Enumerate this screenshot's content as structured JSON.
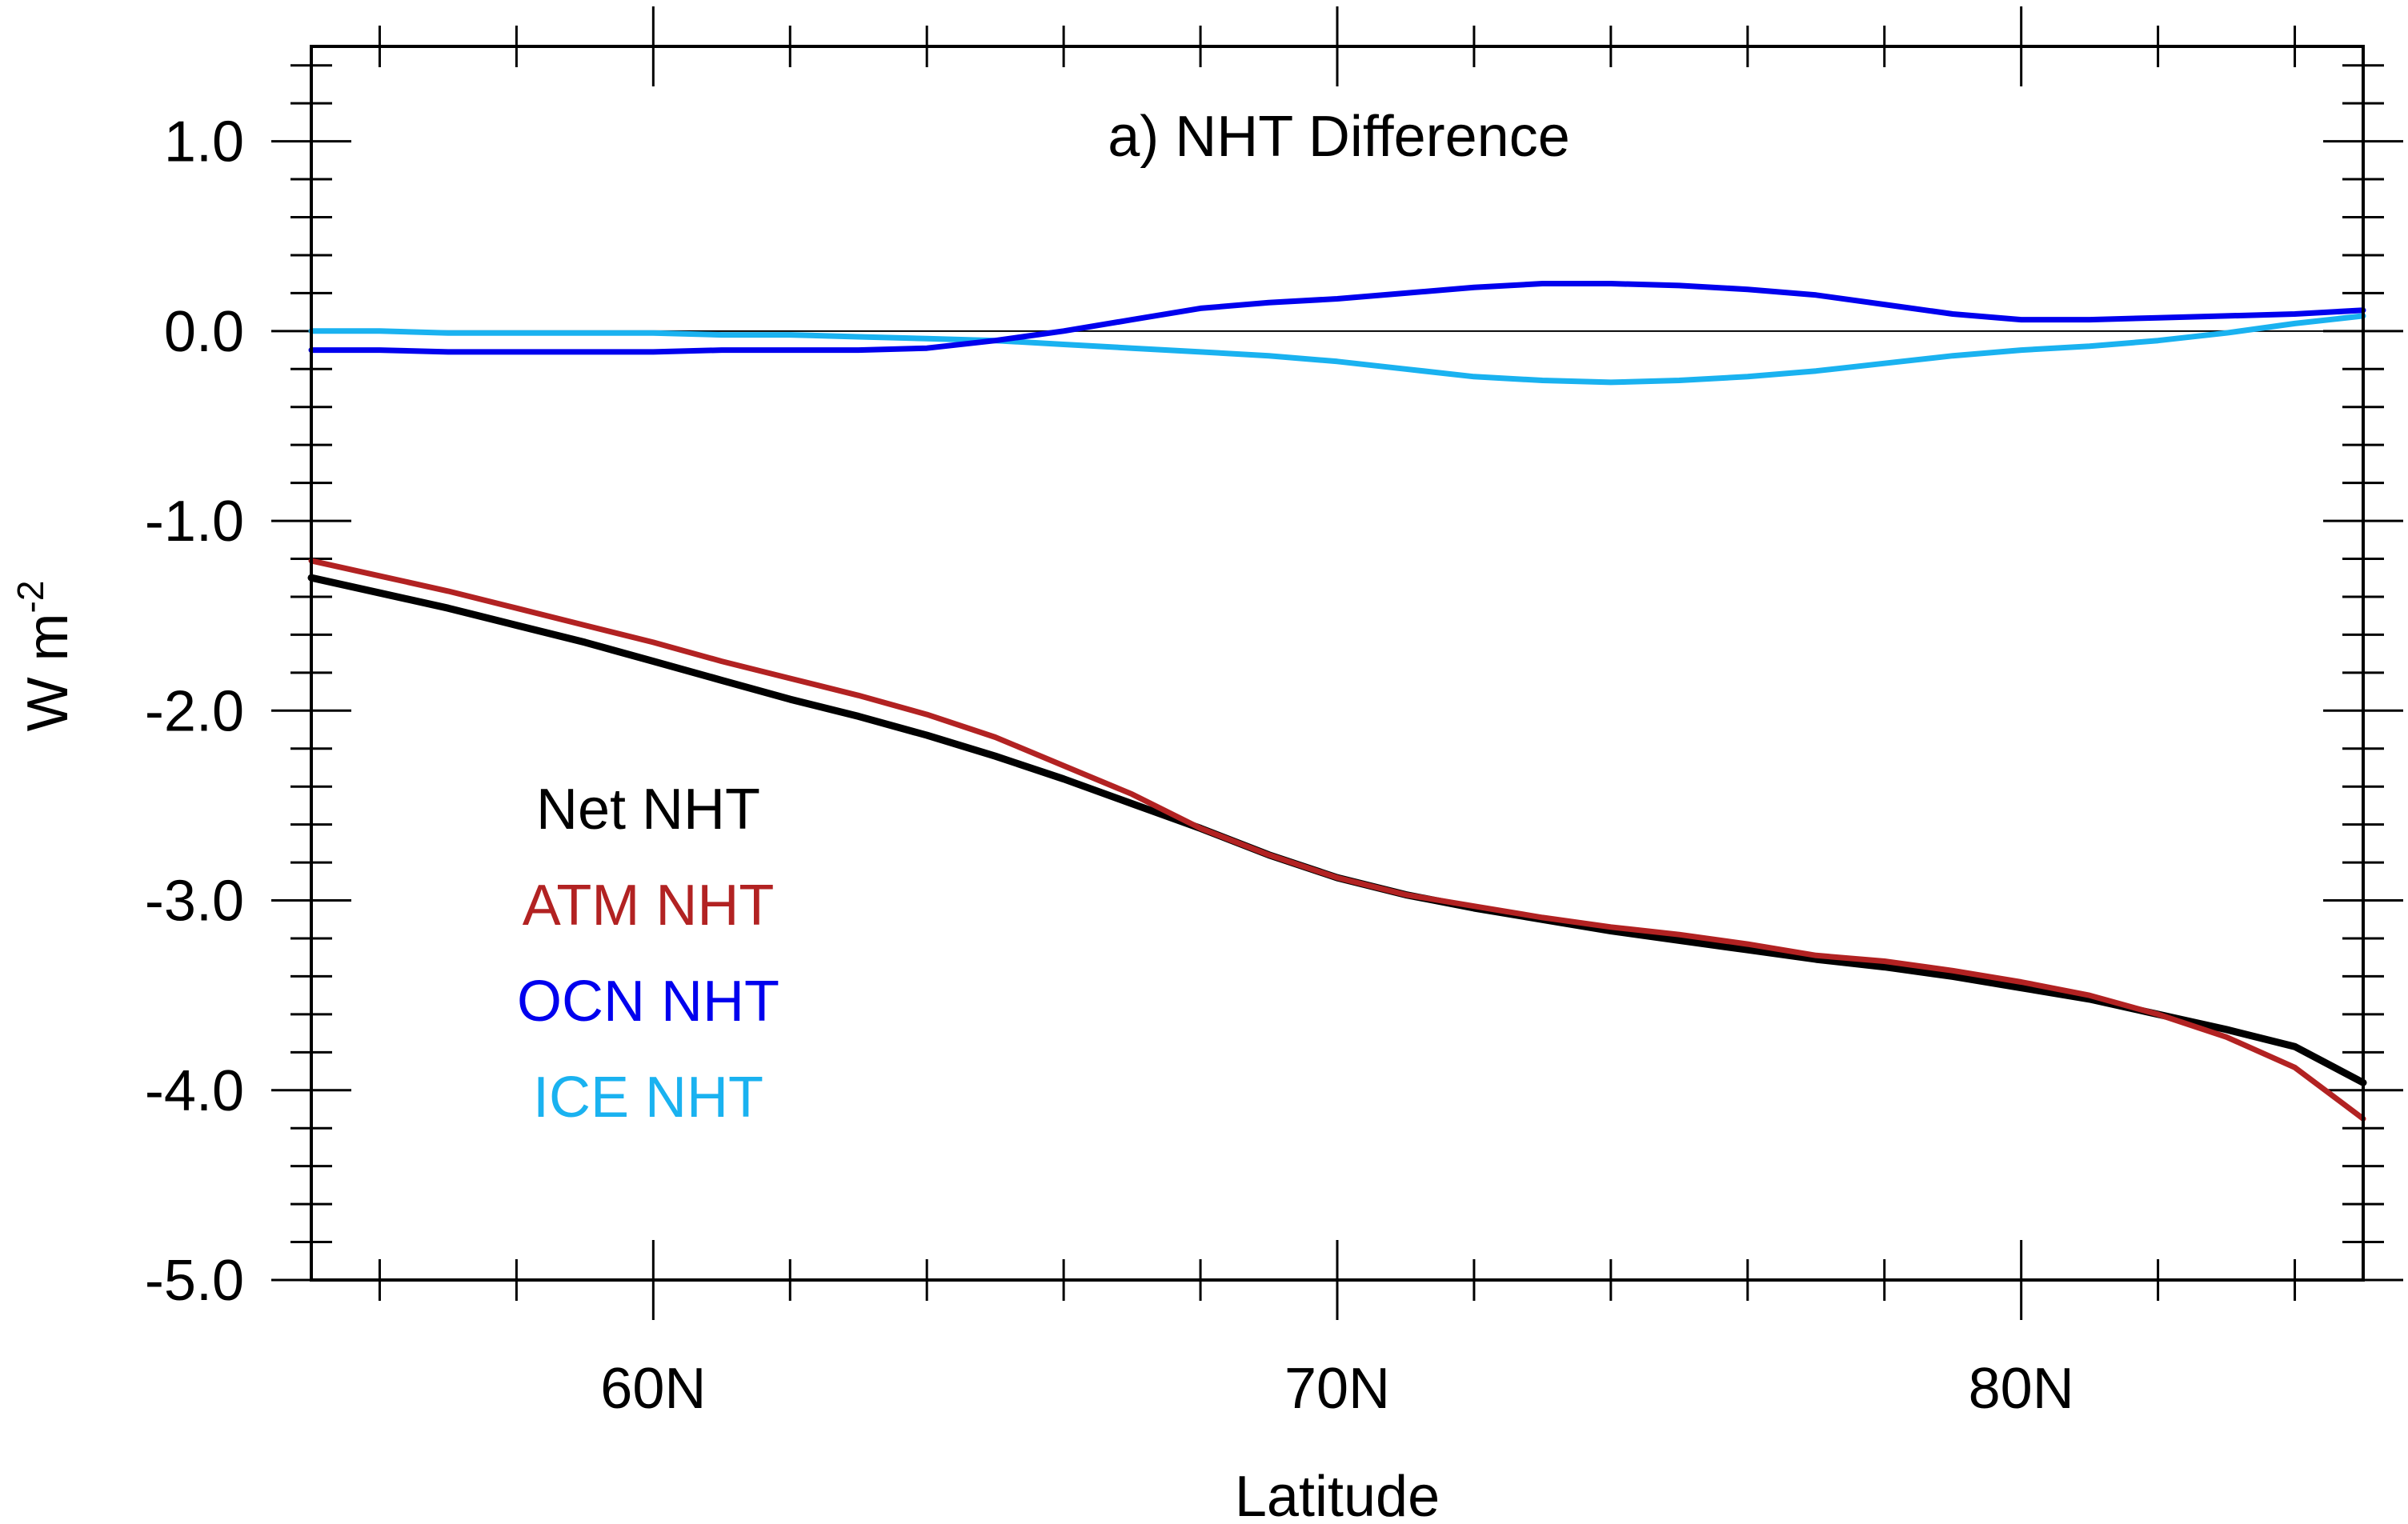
{
  "chart_data": {
    "type": "line",
    "title": "a) NHT Difference",
    "xlabel": "Latitude",
    "ylabel": "W m",
    "ylabel_exponent": "-2",
    "xlim": [
      55,
      85
    ],
    "ylim": [
      -5.0,
      1.5
    ],
    "x_ticks": [
      60,
      70,
      80
    ],
    "x_tick_labels": [
      "60N",
      "70N",
      "80N"
    ],
    "y_ticks": [
      1.0,
      0.0,
      -1.0,
      -2.0,
      -3.0,
      -4.0,
      -5.0
    ],
    "y_tick_labels": [
      "1.0",
      "0.0",
      "-1.0",
      "-2.0",
      "-3.0",
      "-4.0",
      "-5.0"
    ],
    "zero_line": true,
    "legend_position": "left",
    "series": [
      {
        "name": "Net NHT",
        "color": "#000000",
        "x": [
          55,
          56,
          57,
          58,
          59,
          60,
          61,
          62,
          63,
          64,
          65,
          66,
          67,
          68,
          69,
          70,
          71,
          72,
          73,
          74,
          75,
          76,
          77,
          78,
          79,
          80,
          81,
          82,
          83,
          84,
          85
        ],
        "y": [
          -1.3,
          -1.38,
          -1.46,
          -1.55,
          -1.64,
          -1.74,
          -1.84,
          -1.94,
          -2.03,
          -2.13,
          -2.24,
          -2.36,
          -2.49,
          -2.62,
          -2.76,
          -2.88,
          -2.97,
          -3.04,
          -3.1,
          -3.16,
          -3.21,
          -3.26,
          -3.31,
          -3.35,
          -3.4,
          -3.46,
          -3.52,
          -3.6,
          -3.68,
          -3.77,
          -3.96
        ]
      },
      {
        "name": "ATM NHT",
        "color": "#b22222",
        "x": [
          55,
          56,
          57,
          58,
          59,
          60,
          61,
          62,
          63,
          64,
          65,
          66,
          67,
          68,
          69,
          70,
          71,
          72,
          73,
          74,
          75,
          76,
          77,
          78,
          79,
          80,
          81,
          82,
          83,
          84,
          85
        ],
        "y": [
          -1.21,
          -1.29,
          -1.37,
          -1.46,
          -1.55,
          -1.64,
          -1.74,
          -1.83,
          -1.92,
          -2.02,
          -2.14,
          -2.29,
          -2.44,
          -2.62,
          -2.76,
          -2.88,
          -2.97,
          -3.03,
          -3.09,
          -3.14,
          -3.18,
          -3.23,
          -3.29,
          -3.32,
          -3.37,
          -3.43,
          -3.5,
          -3.6,
          -3.72,
          -3.88,
          -4.15
        ]
      },
      {
        "name": "OCN NHT",
        "color": "#0000ee",
        "x": [
          55,
          56,
          57,
          58,
          59,
          60,
          61,
          62,
          63,
          64,
          65,
          66,
          67,
          68,
          69,
          70,
          71,
          72,
          73,
          74,
          75,
          76,
          77,
          78,
          79,
          80,
          81,
          82,
          83,
          84,
          85
        ],
        "y": [
          -0.1,
          -0.1,
          -0.11,
          -0.11,
          -0.11,
          -0.11,
          -0.1,
          -0.1,
          -0.1,
          -0.09,
          -0.05,
          0.0,
          0.06,
          0.12,
          0.15,
          0.17,
          0.2,
          0.23,
          0.25,
          0.25,
          0.24,
          0.22,
          0.19,
          0.14,
          0.09,
          0.06,
          0.06,
          0.07,
          0.08,
          0.09,
          0.11
        ]
      },
      {
        "name": "ICE NHT",
        "color": "#1ab2f0",
        "x": [
          55,
          56,
          57,
          58,
          59,
          60,
          61,
          62,
          63,
          64,
          65,
          66,
          67,
          68,
          69,
          70,
          71,
          72,
          73,
          74,
          75,
          76,
          77,
          78,
          79,
          80,
          81,
          82,
          83,
          84,
          85
        ],
        "y": [
          0.0,
          0.0,
          -0.01,
          -0.01,
          -0.01,
          -0.01,
          -0.02,
          -0.02,
          -0.03,
          -0.04,
          -0.05,
          -0.07,
          -0.09,
          -0.11,
          -0.13,
          -0.16,
          -0.2,
          -0.24,
          -0.26,
          -0.27,
          -0.26,
          -0.24,
          -0.21,
          -0.17,
          -0.13,
          -0.1,
          -0.08,
          -0.05,
          -0.01,
          0.04,
          0.08
        ]
      }
    ]
  }
}
